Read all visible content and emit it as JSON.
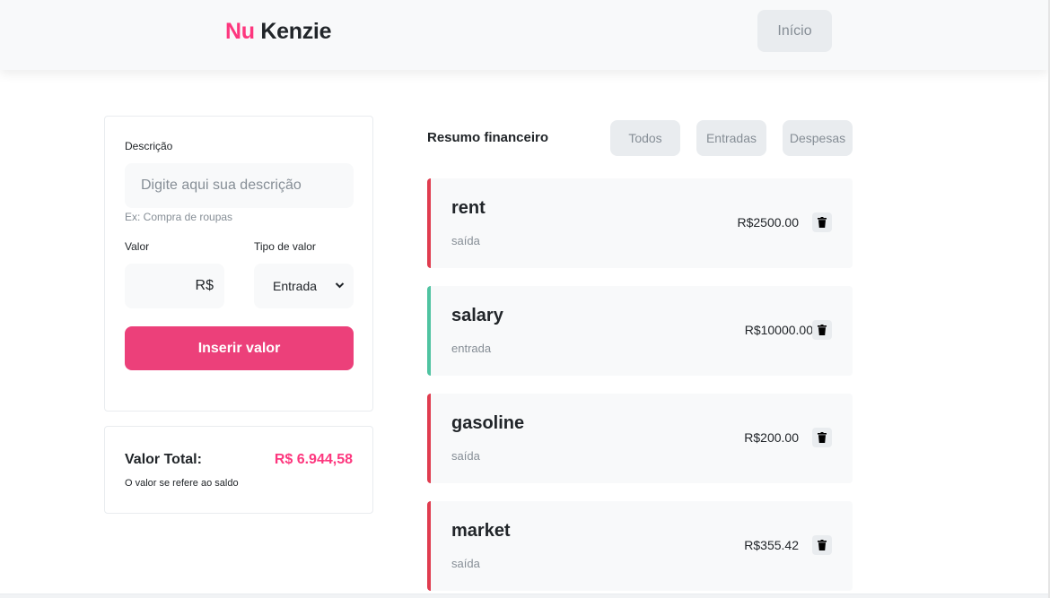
{
  "header": {
    "logo_nu": "Nu",
    "logo_kenzie": "Kenzie",
    "home_button": "Início"
  },
  "form": {
    "description_label": "Descrição",
    "description_placeholder": "Digite aqui sua descrição",
    "description_hint": "Ex: Compra de roupas",
    "value_label": "Valor",
    "value_placeholder": "R$",
    "type_label": "Tipo de valor",
    "type_selected": "Entrada",
    "submit_label": "Inserir valor"
  },
  "total": {
    "label": "Valor Total:",
    "value": "R$ 6.944,58",
    "note": "O valor se refere ao saldo"
  },
  "summary": {
    "title": "Resumo financeiro",
    "filters": [
      "Todos",
      "Entradas",
      "Despesas"
    ]
  },
  "transactions": [
    {
      "name": "rent",
      "type": "saída",
      "amount": "R$2500.00",
      "color": "#e03c4f"
    },
    {
      "name": "salary",
      "type": "entrada",
      "amount": "R$10000.00",
      "color": "#4fc3a1"
    },
    {
      "name": "gasoline",
      "type": "saída",
      "amount": "R$200.00",
      "color": "#e03c4f"
    },
    {
      "name": "market",
      "type": "saída",
      "amount": "R$355.42",
      "color": "#e03c4f"
    }
  ],
  "colors": {
    "brand": "#fd377e",
    "button": "#ec407a",
    "expense": "#e03c4f",
    "income": "#4fc3a1"
  },
  "icons": {
    "delete": "trash-icon",
    "select": "chevron-down-icon"
  }
}
